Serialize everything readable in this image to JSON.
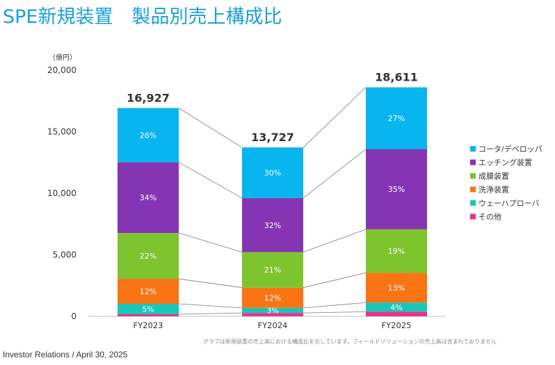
{
  "title": "SPE新規装置　製品別売上構成比",
  "footnote": "グラフは新規装置の売上高における構成比を示しています。フィールドソリューションの売上高は含まれておりません",
  "footer": "Investor Relations / April 30, 2025",
  "chart_data": {
    "type": "bar",
    "stacked": true,
    "unit_label": "（億円）",
    "categories": [
      "FY2023",
      "FY2024",
      "FY2025"
    ],
    "totals": [
      "16,927",
      "13,727",
      "18,611"
    ],
    "total_values": [
      16927,
      13727,
      18611
    ],
    "ylim": [
      0,
      20000
    ],
    "yticks": [
      0,
      5000,
      10000,
      15000,
      20000
    ],
    "ytick_labels": [
      "0",
      "5,000",
      "10,000",
      "15,000",
      "20,000"
    ],
    "legend_position": "right",
    "connector_lines": true,
    "series": [
      {
        "name": "その他",
        "color": "#e6348c",
        "percent": [
          1,
          2,
          2
        ],
        "labels": [
          "",
          "",
          ""
        ]
      },
      {
        "name": "ウェーハプローバ",
        "color": "#1ac6b8",
        "percent": [
          5,
          3,
          4
        ],
        "labels": [
          "5%",
          "3%",
          "4%"
        ]
      },
      {
        "name": "洗浄装置",
        "color": "#f97414",
        "percent": [
          12,
          12,
          13
        ],
        "labels": [
          "12%",
          "12%",
          "13%"
        ]
      },
      {
        "name": "成膜装置",
        "color": "#7dc42f",
        "percent": [
          22,
          21,
          19
        ],
        "labels": [
          "22%",
          "21%",
          "19%"
        ]
      },
      {
        "name": "エッチング装置",
        "color": "#8535b4",
        "percent": [
          34,
          32,
          35
        ],
        "labels": [
          "34%",
          "32%",
          "35%"
        ]
      },
      {
        "name": "コータ/デベロッパ",
        "color": "#09b5ee",
        "percent": [
          26,
          30,
          27
        ],
        "labels": [
          "26%",
          "30%",
          "27%"
        ]
      }
    ]
  }
}
